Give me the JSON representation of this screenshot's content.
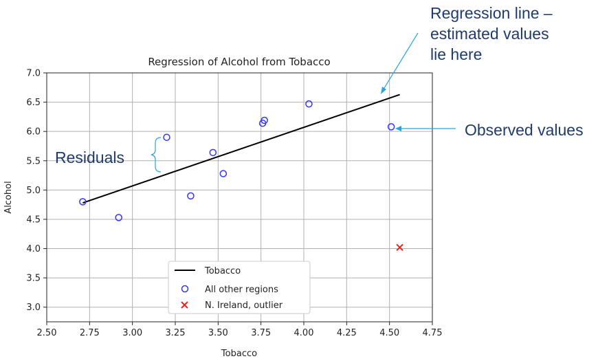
{
  "chart_data": {
    "type": "scatter",
    "title": "Regression of Alcohol from Tobacco",
    "xlabel": "Tobacco",
    "ylabel": "Alcohol",
    "xlim": [
      2.5,
      4.75
    ],
    "ylim": [
      2.75,
      7.0
    ],
    "xticks": [
      "2.50",
      "2.75",
      "3.00",
      "3.25",
      "3.50",
      "3.75",
      "4.00",
      "4.25",
      "4.50",
      "4.75"
    ],
    "yticks": [
      "3.0",
      "3.5",
      "4.0",
      "4.5",
      "5.0",
      "5.5",
      "6.0",
      "6.5",
      "7.0"
    ],
    "grid": true,
    "legend_position": "bottom-center",
    "series": [
      {
        "name": "Tobacco",
        "kind": "line",
        "color": "#000000",
        "points": [
          [
            2.71,
            4.78
          ],
          [
            4.56,
            6.63
          ]
        ]
      },
      {
        "name": "All other regions",
        "kind": "scatter",
        "marker": "open-circle",
        "color": "#3333ff",
        "points": [
          [
            2.71,
            4.8
          ],
          [
            2.92,
            4.53
          ],
          [
            3.2,
            5.9
          ],
          [
            3.34,
            4.9
          ],
          [
            3.47,
            5.64
          ],
          [
            3.53,
            5.28
          ],
          [
            3.76,
            6.14
          ],
          [
            3.77,
            6.19
          ],
          [
            4.03,
            6.47
          ],
          [
            4.51,
            6.08
          ]
        ]
      },
      {
        "name": "N. Ireland, outlier",
        "kind": "scatter",
        "marker": "x",
        "color": "#ee2222",
        "points": [
          [
            4.56,
            4.02
          ]
        ]
      }
    ],
    "annotations": {
      "regression": [
        "Regression line –",
        "estimated values",
        "lie here"
      ],
      "observed": "Observed values",
      "residuals": "Residuals"
    }
  }
}
